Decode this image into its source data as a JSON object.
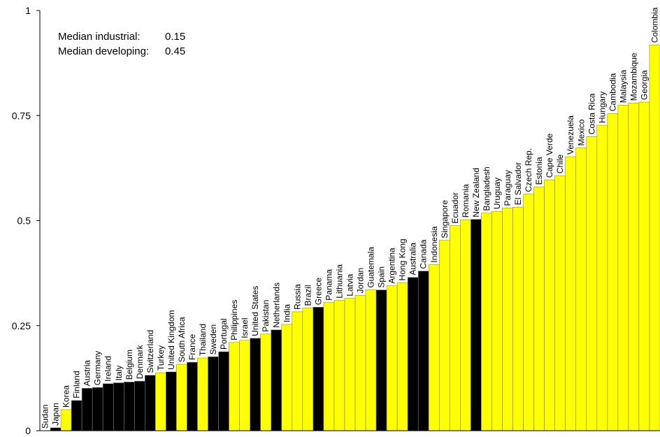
{
  "chart_data": {
    "type": "bar",
    "title": "",
    "xlabel": "",
    "ylabel": "",
    "ylim": [
      0,
      1
    ],
    "yticks": [
      {
        "value": 0,
        "label": "0"
      },
      {
        "value": 0.25,
        "label": "0.25"
      },
      {
        "value": 0.5,
        "label": "0.5"
      },
      {
        "value": 0.75,
        "label": "0.75"
      },
      {
        "value": 1,
        "label": "1"
      }
    ],
    "grid": false,
    "annotations": [
      {
        "label": "Median industrial:",
        "value": "0.15"
      },
      {
        "label": "Median developing:",
        "value": "0.45"
      }
    ],
    "colors": {
      "industrial": "#000000",
      "developing": "#ffff00",
      "bar_edge": "#808080"
    },
    "bars": [
      {
        "name": "Sudan",
        "value": 0.0,
        "group": "developing"
      },
      {
        "name": "Japan",
        "value": 0.007,
        "group": "industrial"
      },
      {
        "name": "Korea",
        "value": 0.05,
        "group": "developing"
      },
      {
        "name": "Finland",
        "value": 0.072,
        "group": "industrial"
      },
      {
        "name": "Austria",
        "value": 0.101,
        "group": "industrial"
      },
      {
        "name": "Germany",
        "value": 0.103,
        "group": "industrial"
      },
      {
        "name": "Ireland",
        "value": 0.112,
        "group": "industrial"
      },
      {
        "name": "Italy",
        "value": 0.114,
        "group": "industrial"
      },
      {
        "name": "Belgium",
        "value": 0.116,
        "group": "industrial"
      },
      {
        "name": "Denmark",
        "value": 0.118,
        "group": "industrial"
      },
      {
        "name": "Switzerland",
        "value": 0.132,
        "group": "industrial"
      },
      {
        "name": "Turkey",
        "value": 0.138,
        "group": "developing"
      },
      {
        "name": "United Kingdom",
        "value": 0.14,
        "group": "industrial"
      },
      {
        "name": "South Africa",
        "value": 0.158,
        "group": "developing"
      },
      {
        "name": "France",
        "value": 0.163,
        "group": "industrial"
      },
      {
        "name": "Thailand",
        "value": 0.173,
        "group": "developing"
      },
      {
        "name": "Sweden",
        "value": 0.176,
        "group": "industrial"
      },
      {
        "name": "Portugal",
        "value": 0.188,
        "group": "industrial"
      },
      {
        "name": "Philippines",
        "value": 0.21,
        "group": "developing"
      },
      {
        "name": "Israel",
        "value": 0.215,
        "group": "developing"
      },
      {
        "name": "United States",
        "value": 0.22,
        "group": "industrial"
      },
      {
        "name": "Pakistan",
        "value": 0.23,
        "group": "developing"
      },
      {
        "name": "Netherlands",
        "value": 0.24,
        "group": "industrial"
      },
      {
        "name": "India",
        "value": 0.253,
        "group": "developing"
      },
      {
        "name": "Russia",
        "value": 0.283,
        "group": "developing"
      },
      {
        "name": "Brazil",
        "value": 0.292,
        "group": "developing"
      },
      {
        "name": "Greece",
        "value": 0.294,
        "group": "industrial"
      },
      {
        "name": "Panama",
        "value": 0.305,
        "group": "developing"
      },
      {
        "name": "Lithuania",
        "value": 0.31,
        "group": "developing"
      },
      {
        "name": "Latvia",
        "value": 0.315,
        "group": "developing"
      },
      {
        "name": "Jordan",
        "value": 0.322,
        "group": "developing"
      },
      {
        "name": "Guatemala",
        "value": 0.335,
        "group": "developing"
      },
      {
        "name": "Spain",
        "value": 0.335,
        "group": "industrial"
      },
      {
        "name": "Argentina",
        "value": 0.345,
        "group": "developing"
      },
      {
        "name": "Hong Kong",
        "value": 0.352,
        "group": "developing"
      },
      {
        "name": "Australia",
        "value": 0.365,
        "group": "industrial"
      },
      {
        "name": "Canada",
        "value": 0.38,
        "group": "industrial"
      },
      {
        "name": "Indonesia",
        "value": 0.395,
        "group": "developing"
      },
      {
        "name": "Singapore",
        "value": 0.453,
        "group": "developing"
      },
      {
        "name": "Ecuador",
        "value": 0.488,
        "group": "developing"
      },
      {
        "name": "Romania",
        "value": 0.502,
        "group": "developing"
      },
      {
        "name": "New Zealand",
        "value": 0.503,
        "group": "industrial"
      },
      {
        "name": "Bangladesh",
        "value": 0.518,
        "group": "developing"
      },
      {
        "name": "Uruguay",
        "value": 0.522,
        "group": "developing"
      },
      {
        "name": "Paraguay",
        "value": 0.53,
        "group": "developing"
      },
      {
        "name": "El Salvador",
        "value": 0.532,
        "group": "developing"
      },
      {
        "name": "Czech Rep.",
        "value": 0.563,
        "group": "developing"
      },
      {
        "name": "Estonia",
        "value": 0.58,
        "group": "developing"
      },
      {
        "name": "Cape Verde",
        "value": 0.597,
        "group": "developing"
      },
      {
        "name": "Chile",
        "value": 0.607,
        "group": "developing"
      },
      {
        "name": "Venezuela",
        "value": 0.652,
        "group": "developing"
      },
      {
        "name": "Mexico",
        "value": 0.673,
        "group": "developing"
      },
      {
        "name": "Costa Rica",
        "value": 0.7,
        "group": "developing"
      },
      {
        "name": "Hungary",
        "value": 0.727,
        "group": "developing"
      },
      {
        "name": "Cambodia",
        "value": 0.755,
        "group": "developing"
      },
      {
        "name": "Malaysia",
        "value": 0.775,
        "group": "developing"
      },
      {
        "name": "Mozambique",
        "value": 0.78,
        "group": "developing"
      },
      {
        "name": "Georgia",
        "value": 0.782,
        "group": "developing"
      },
      {
        "name": "Colombia",
        "value": 0.918,
        "group": "developing"
      }
    ]
  }
}
